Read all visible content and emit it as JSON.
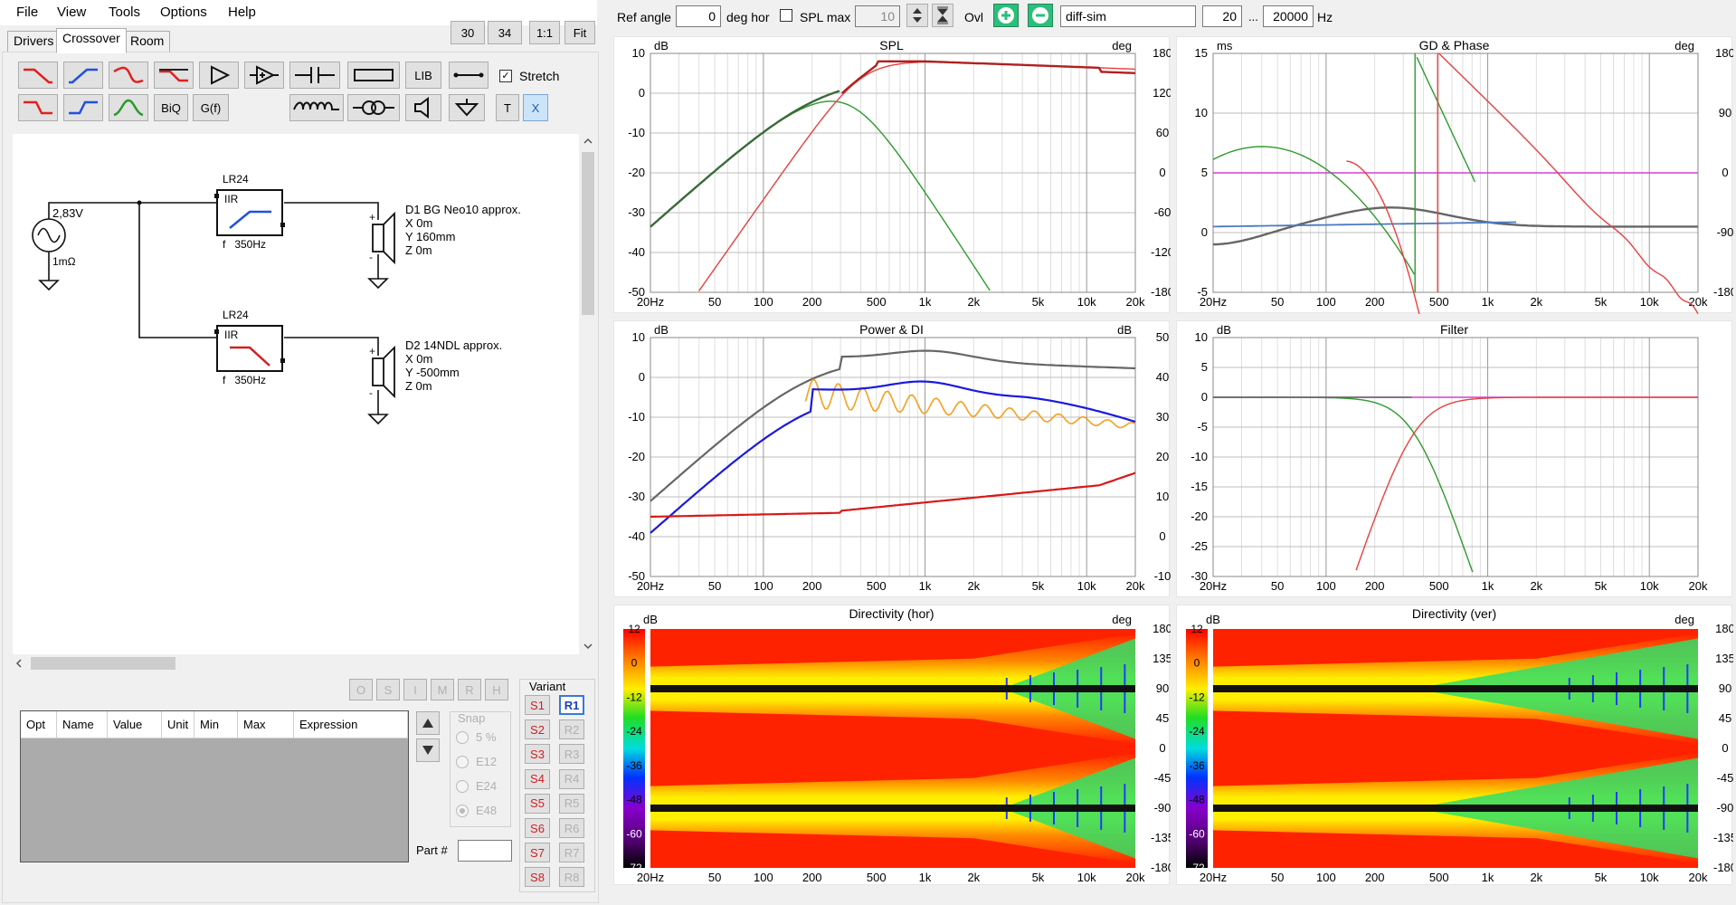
{
  "menu": [
    "File",
    "View",
    "Tools",
    "Options",
    "Help"
  ],
  "tabs": [
    "Drivers",
    "Crossover",
    "Room"
  ],
  "zoom_buttons": [
    "30",
    "34",
    "1:1",
    "Fit"
  ],
  "toolbar": {
    "lib": "LIB",
    "stretch": "Stretch",
    "biq": "BiQ",
    "gf": "G(f)",
    "t": "T",
    "x": "X"
  },
  "schematic": {
    "source_voltage": "2,83V",
    "source_impedance": "1mΩ",
    "filter1": {
      "type": "LR24",
      "mode": "IIR",
      "freq": "f   350Hz"
    },
    "filter2": {
      "type": "LR24",
      "mode": "IIR",
      "freq": "f   350Hz"
    },
    "driver1": {
      "name": "D1 BG Neo10 approx.",
      "x": "X 0m",
      "y": "Y 160mm",
      "z": "Z 0m"
    },
    "driver2": {
      "name": "D2 14NDL approx.",
      "x": "X 0m",
      "y": "Y -500mm",
      "z": "Z 0m"
    }
  },
  "opt_letters": [
    "O",
    "S",
    "I",
    "M",
    "R",
    "H"
  ],
  "table_headers": [
    "Opt",
    "Name",
    "Value",
    "Unit",
    "Min",
    "Max",
    "Expression"
  ],
  "snap": {
    "label": "Snap",
    "options": [
      "5 %",
      "E12",
      "E24",
      "E48"
    ],
    "selected": "E48"
  },
  "part_label": "Part #",
  "variant": {
    "label": "Variant",
    "s": [
      "S1",
      "S2",
      "S3",
      "S4",
      "S5",
      "S6",
      "S7",
      "S8"
    ],
    "r": [
      "R1",
      "R2",
      "R3",
      "R4",
      "R5",
      "R6",
      "R7",
      "R8"
    ],
    "active_r": "R1"
  },
  "topbar": {
    "ref_angle_label": "Ref angle",
    "ref_angle": "0",
    "deg_hor": "deg hor",
    "spl_max_label": "SPL max",
    "spl_max": "10",
    "ovl_label": "Ovl",
    "overlay_name": "diff-sim",
    "f_min": "20",
    "ellipsis": "...",
    "f_max": "20000",
    "hz": "Hz"
  },
  "freq_ticks": [
    "20Hz",
    "50",
    "100",
    "200",
    "500",
    "1k",
    "2k",
    "5k",
    "10k",
    "20k"
  ],
  "colors": {
    "red": "#e84040",
    "green": "#2e9a2e",
    "darkred": "#b02020",
    "darkgreen": "#3a6a3a",
    "grey": "#666666",
    "blue": "#1a1adc",
    "orange": "#f5a020",
    "magenta": "#d040d0"
  },
  "plots": {
    "spl": {
      "title": "SPL",
      "unit_left": "dB",
      "unit_right": "deg",
      "yleft": [
        "10",
        "0",
        "-10",
        "-20",
        "-30",
        "-40",
        "-50"
      ],
      "yright": [
        "180",
        "120",
        "60",
        "0",
        "-60",
        "-120",
        "-180"
      ]
    },
    "gd": {
      "title": "GD & Phase",
      "unit_left": "ms",
      "unit_right": "deg",
      "yleft": [
        "15",
        "10",
        "5",
        "0",
        "-5"
      ],
      "yright": [
        "180",
        "90",
        "0",
        "-90",
        "-180"
      ]
    },
    "power": {
      "title": "Power & DI",
      "unit_left": "dB",
      "unit_right": "dB",
      "yleft": [
        "10",
        "0",
        "-10",
        "-20",
        "-30",
        "-40",
        "-50"
      ],
      "yright": [
        "50",
        "40",
        "30",
        "20",
        "10",
        "0",
        "-10"
      ]
    },
    "filter": {
      "title": "Filter",
      "unit_left": "dB",
      "yleft": [
        "10",
        "5",
        "0",
        "-5",
        "-10",
        "-15",
        "-20",
        "-25",
        "-30"
      ]
    },
    "dir_hor": {
      "title": "Directivity (hor)",
      "unit_left": "dB",
      "unit_right": "deg",
      "scale": [
        "12",
        "0",
        "-12",
        "-24",
        "-36",
        "-48",
        "-60",
        "-72"
      ],
      "angles": [
        "180",
        "135",
        "90",
        "45",
        "0",
        "-45",
        "-90",
        "-135",
        "-180"
      ]
    },
    "dir_ver": {
      "title": "Directivity (ver)",
      "unit_left": "dB",
      "unit_right": "deg",
      "scale": [
        "12",
        "0",
        "-12",
        "-24",
        "-36",
        "-48",
        "-60",
        "-72"
      ],
      "angles": [
        "180",
        "135",
        "90",
        "45",
        "0",
        "-45",
        "-90",
        "-135",
        "-180"
      ]
    }
  }
}
